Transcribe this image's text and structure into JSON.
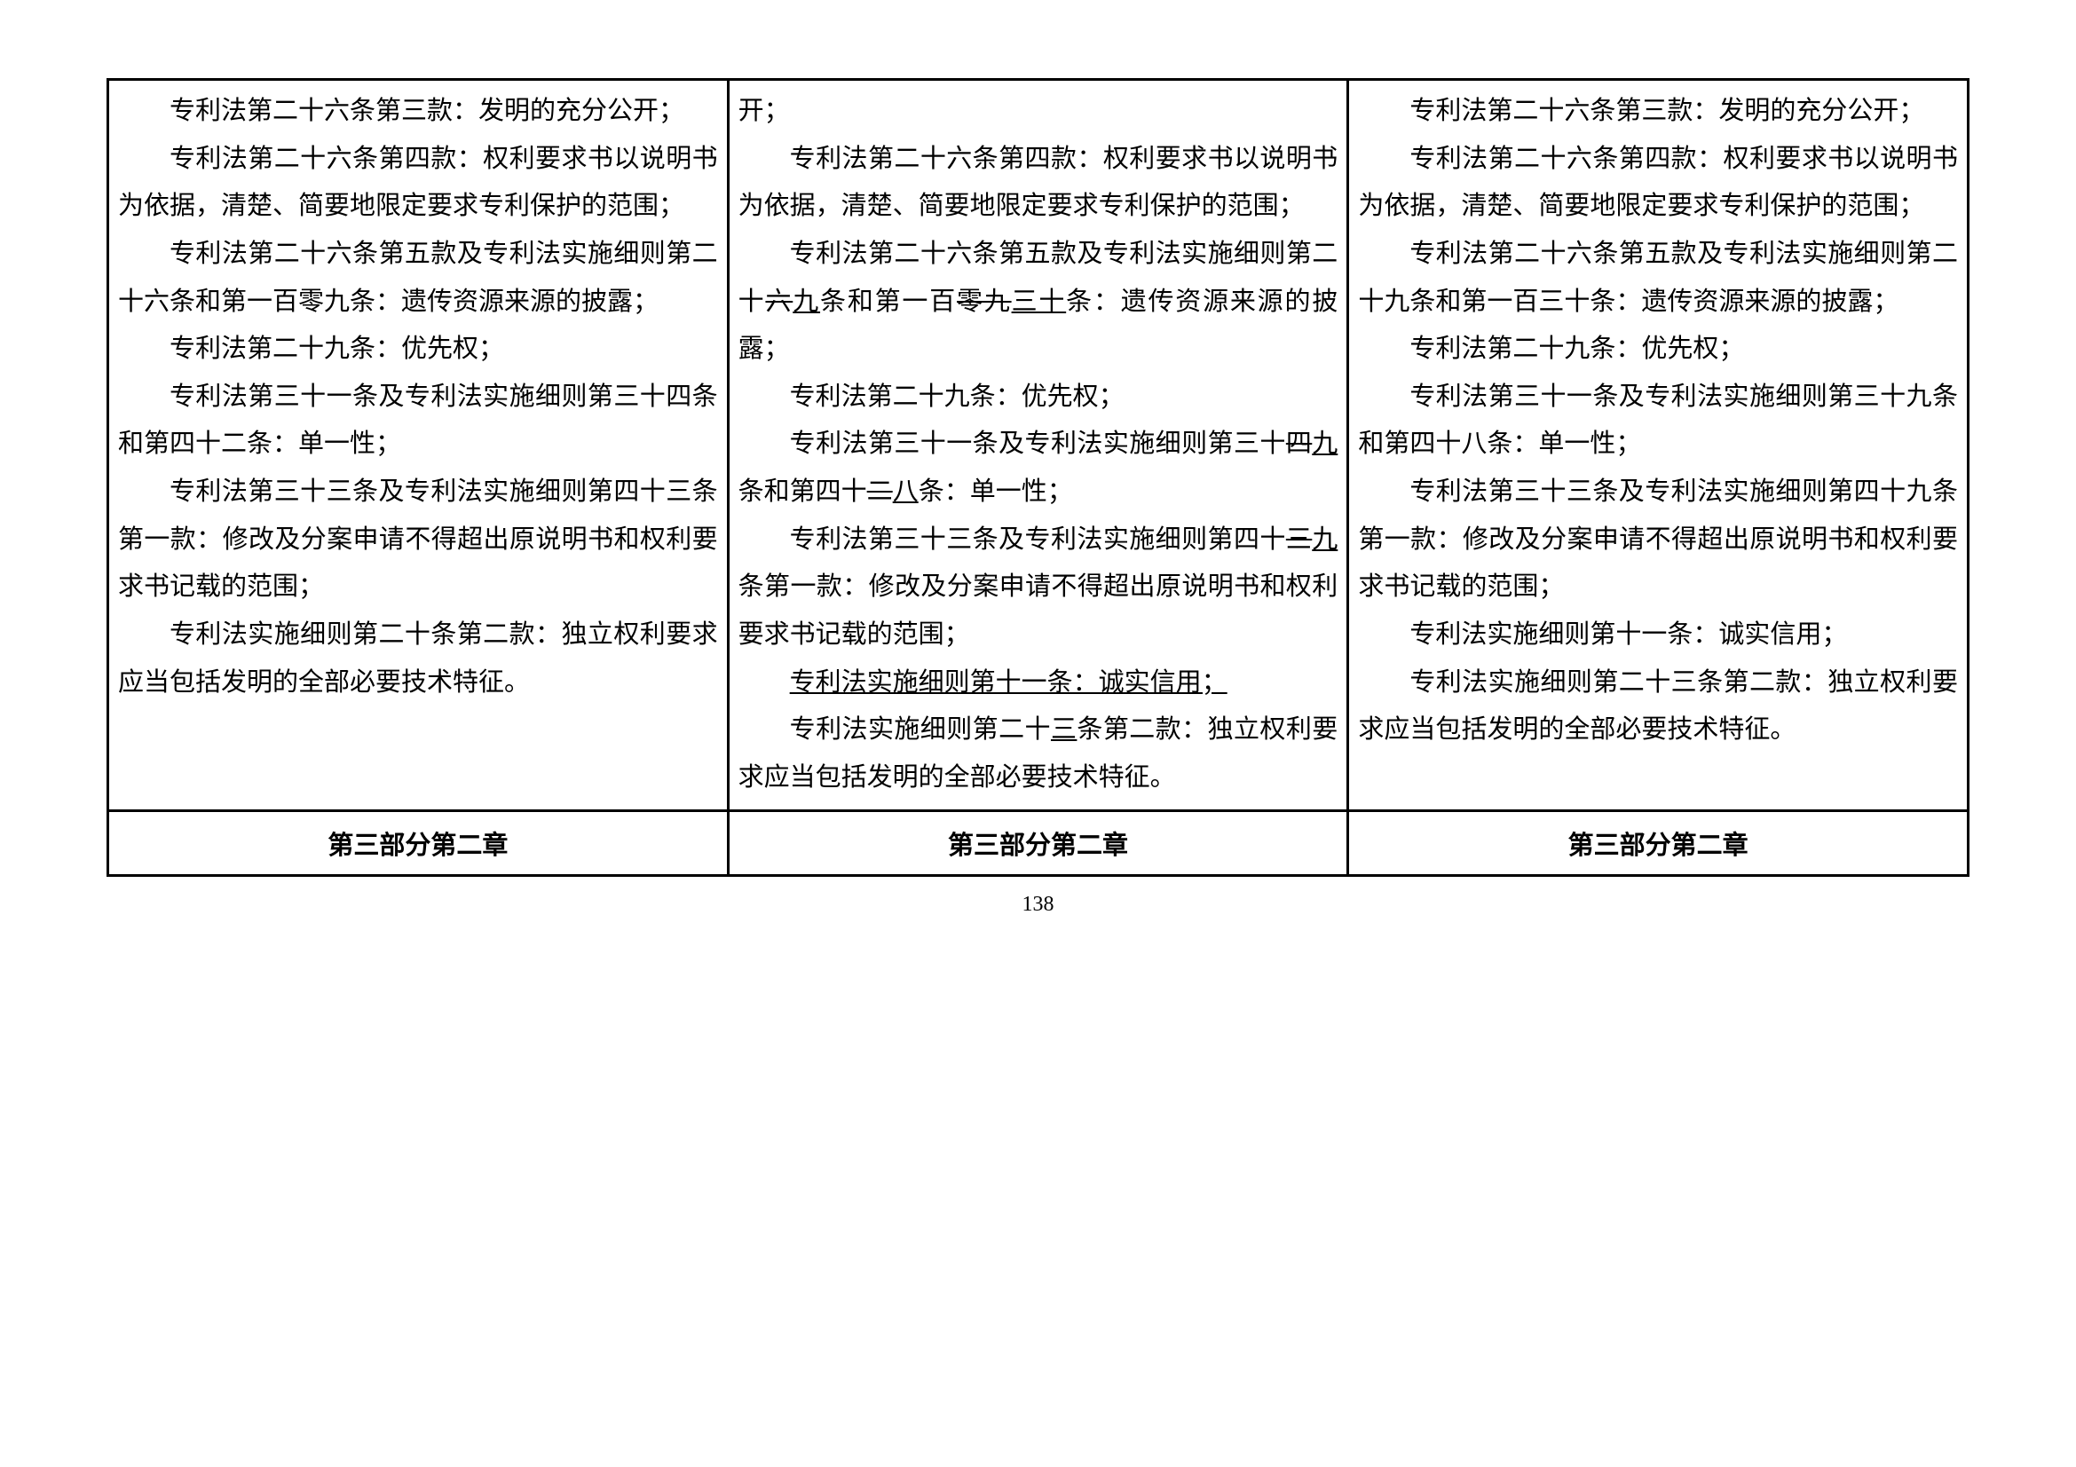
{
  "page_number": "138",
  "headers": [
    "第三部分第二章",
    "第三部分第二章",
    "第三部分第二章"
  ],
  "col1": {
    "p1": "专利法第二十六条第三款：发明的充分公开；",
    "p2": "专利法第二十六条第四款：权利要求书以说明书为依据，清楚、简要地限定要求专利保护的范围；",
    "p3": "专利法第二十六条第五款及专利法实施细则第二十六条和第一百零九条：遗传资源来源的披露；",
    "p4": "专利法第二十九条：优先权；",
    "p5": "专利法第三十一条及专利法实施细则第三十四条和第四十二条：单一性；",
    "p6": "专利法第三十三条及专利法实施细则第四十三条第一款：修改及分案申请不得超出原说明书和权利要求书记载的范围；",
    "p7": "专利法实施细则第二十条第二款：独立权利要求应当包括发明的全部必要技术特征。"
  },
  "col2": {
    "p1": "开；",
    "p2_a": "专利法第二十六条第四款：权利要求书以说明书为依据，清楚、简要地限定要求专利保护的范围；",
    "p3_pre": "专利法第二十六条第五款及专利法实施细则第二十",
    "p3_s1": "六",
    "p3_u1": "九",
    "p3_mid": "条和第一百",
    "p3_s2": "零九",
    "p3_u2": "三十",
    "p3_post": "条：遗传资源来源的披露；",
    "p4": "专利法第二十九条：优先权；",
    "p5_pre": "专利法第三十一条及专利法实施细则第三十",
    "p5_s1": "四",
    "p5_u1": "九",
    "p5_mid": "条和第四十",
    "p5_s2": "二",
    "p5_u2": "八",
    "p5_post": "条：单一性；",
    "p6_pre": "专利法第三十三条及专利法实施细则第四十",
    "p6_s1": "三",
    "p6_u1": "九",
    "p6_post": "条第一款：修改及分案申请不得超出原说明书和权利要求书记载的范围；",
    "p7_u": "专利法实施细则第十一条：诚实信用；",
    "p8_pre": "专利法实施细则第二十",
    "p8_u": "三",
    "p8_post": "条第二款：独立权利要求应当包括发明的全部必要技术特征。"
  },
  "col3": {
    "p1": "专利法第二十六条第三款：发明的充分公开；",
    "p2": "专利法第二十六条第四款：权利要求书以说明书为依据，清楚、简要地限定要求专利保护的范围；",
    "p3": "专利法第二十六条第五款及专利法实施细则第二十九条和第一百三十条：遗传资源来源的披露；",
    "p4": "专利法第二十九条：优先权；",
    "p5": "专利法第三十一条及专利法实施细则第三十九条和第四十八条：单一性；",
    "p6": "专利法第三十三条及专利法实施细则第四十九条第一款：修改及分案申请不得超出原说明书和权利要求书记载的范围；",
    "p7": "专利法实施细则第十一条：诚实信用；",
    "p8": "专利法实施细则第二十三条第二款：独立权利要求应当包括发明的全部必要技术特征。"
  }
}
